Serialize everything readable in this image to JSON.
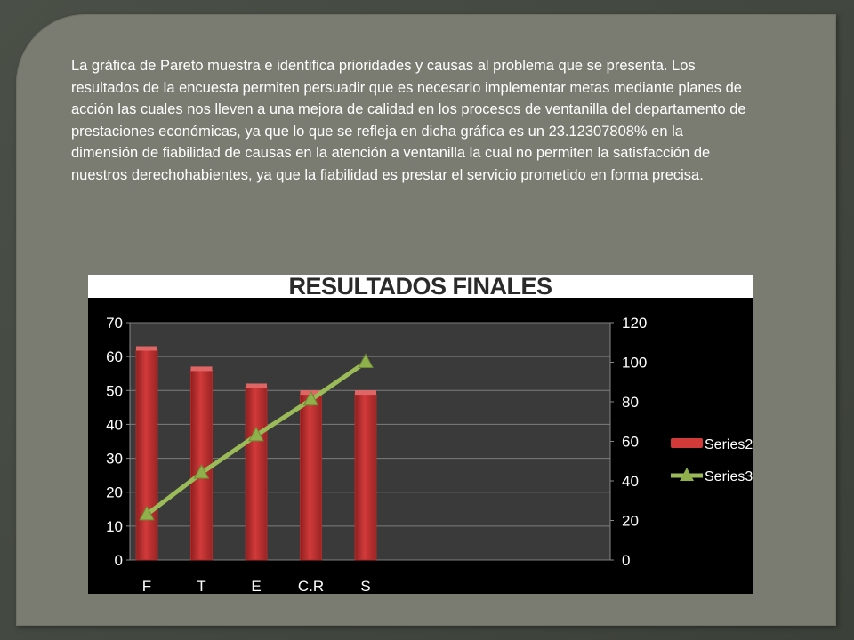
{
  "slide": {
    "body_text": "La gráfica de Pareto muestra e identifica prioridades y causas al problema que se presenta. Los resultados de la encuesta permiten persuadir que es necesario implementar metas mediante planes de acción las cuales nos lleven a una mejora de calidad en los procesos de ventanilla del departamento de prestaciones económicas, ya que lo que se refleja en dicha gráfica es un 23.12307808% en la dimensión de fiabilidad de causas en la atención a ventanilla la cual no permiten la satisfacción de nuestros derechohabientes, ya que la fiabilidad es prestar el servicio prometido en forma precisa."
  },
  "colors": {
    "background": "#3e433b",
    "panel": "#7a7c71",
    "bar": "#d23a3a",
    "line": "#9bbb59",
    "plot_area": "#3a3a3a"
  },
  "chart_data": {
    "type": "bar",
    "title": "RESULTADOS FINALES",
    "categories": [
      "F",
      "T",
      "E",
      "C.R",
      "S"
    ],
    "series": [
      {
        "name": "Series2",
        "type": "bar",
        "axis": "left",
        "values": [
          62,
          56,
          51,
          49,
          49
        ]
      },
      {
        "name": "Series3",
        "type": "line",
        "axis": "right",
        "values": [
          23,
          44,
          63,
          81,
          100
        ]
      }
    ],
    "ylim": [
      0,
      70
    ],
    "yticks": [
      "0",
      "10",
      "20",
      "30",
      "40",
      "50",
      "60",
      "70"
    ],
    "y2lim": [
      0,
      120
    ],
    "y2ticks": [
      "0",
      "20",
      "40",
      "60",
      "80",
      "100",
      "120"
    ],
    "grid": true,
    "legend": "right"
  }
}
